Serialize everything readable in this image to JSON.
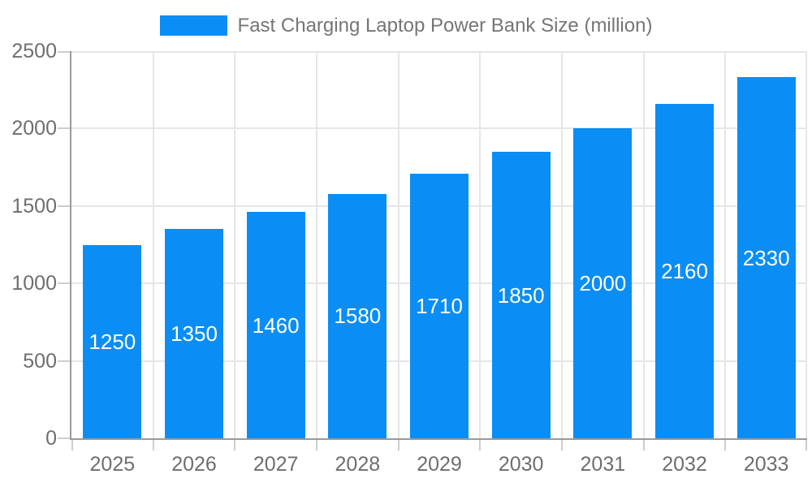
{
  "legend": {
    "label": "Fast Charging Laptop Power Bank Size (million)"
  },
  "chart_data": {
    "type": "bar",
    "title": "Fast Charging Laptop Power Bank Size (million)",
    "categories": [
      "2025",
      "2026",
      "2027",
      "2028",
      "2029",
      "2030",
      "2031",
      "2032",
      "2033"
    ],
    "values": [
      1250,
      1350,
      1460,
      1580,
      1710,
      1850,
      2000,
      2160,
      2330
    ],
    "series": [
      {
        "name": "Fast Charging Laptop Power Bank Size (million)",
        "values": [
          1250,
          1350,
          1460,
          1580,
          1710,
          1850,
          2000,
          2160,
          2330
        ]
      }
    ],
    "xlabel": "",
    "ylabel": "",
    "ylim": [
      0,
      2500
    ],
    "yticks": [
      0,
      500,
      1000,
      1500,
      2000,
      2500
    ],
    "grid": true,
    "legend_position": "top-center",
    "bar_value_labels_visible": true
  },
  "colors": {
    "bar": "#0a8ef5",
    "bar_label": "#ffffff",
    "axis": "#9a9a9a",
    "gridline": "#e6e6e6",
    "tick": "#cdcdcd",
    "tick_label_text": "#6e6e6e",
    "title_text": "#757575",
    "background": "#ffffff"
  }
}
